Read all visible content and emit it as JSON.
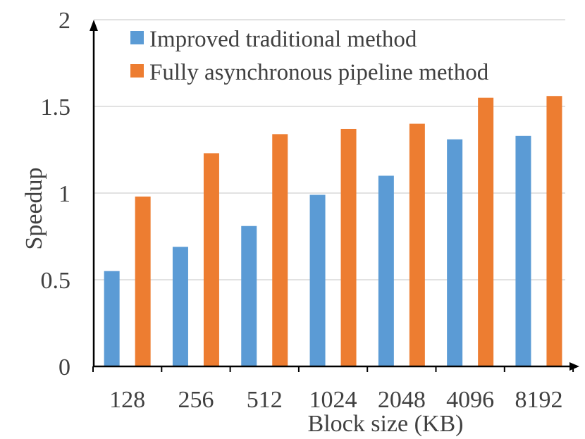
{
  "chart_data": {
    "type": "bar",
    "title": "",
    "xlabel": "Block size (KB)",
    "ylabel": "Speedup",
    "categories": [
      "128",
      "256",
      "512",
      "1024",
      "2048",
      "4096",
      "8192"
    ],
    "series": [
      {
        "name": "Improved traditional method",
        "color": "#5b9bd5",
        "values": [
          0.55,
          0.69,
          0.81,
          0.99,
          1.1,
          1.31,
          1.33
        ]
      },
      {
        "name": "Fully asynchronous pipeline method",
        "color": "#ed7d31",
        "values": [
          0.98,
          1.23,
          1.34,
          1.37,
          1.4,
          1.55,
          1.56
        ]
      }
    ],
    "ylim": [
      0,
      2
    ],
    "yticks": [
      "0",
      "0.5",
      "1",
      "1.5",
      "2"
    ],
    "ytick_values": [
      0,
      0.5,
      1,
      1.5,
      2
    ],
    "grid": true,
    "legend_position": "top-left"
  }
}
